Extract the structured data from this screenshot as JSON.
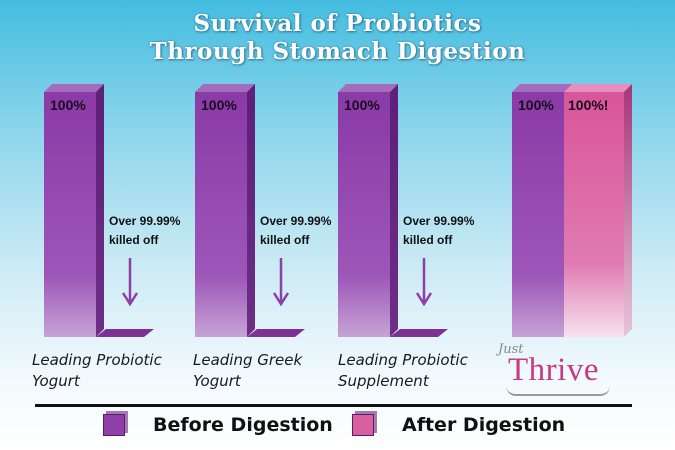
{
  "title_line1": "Survival of Probiotics",
  "title_line2": "Through Stomach Digestion",
  "colors": {
    "before": "#8e3fa8",
    "after": "#d9609f"
  },
  "chart_data": {
    "type": "bar",
    "title": "Survival of Probiotics Through Stomach Digestion",
    "categories": [
      "Leading Probiotic Yogurt",
      "Leading Greek Yogurt",
      "Leading Probiotic Supplement",
      "Just Thrive"
    ],
    "series": [
      {
        "name": "Before Digestion",
        "values": [
          100,
          100,
          100,
          100
        ]
      },
      {
        "name": "After Digestion",
        "values": [
          0.01,
          0.01,
          0.01,
          100
        ]
      }
    ],
    "ylim": [
      0,
      100
    ],
    "data_labels": {
      "before": [
        "100%",
        "100%",
        "100%",
        "100%"
      ],
      "after": [
        "Over 99.99% killed off",
        "Over 99.99% killed off",
        "Over 99.99% killed off",
        "100%!"
      ]
    },
    "legend": "bottom",
    "grid": false
  },
  "labels": {
    "cat1_line1": "Leading Probiotic",
    "cat1_line2": "Yogurt",
    "cat2_line1": "Leading Greek",
    "cat2_line2": "Yogurt",
    "cat3_line1": "Leading Probiotic",
    "cat3_line2": "Supplement",
    "killed_line1": "Over 99.99%",
    "killed_line2": "killed off"
  },
  "legend": {
    "before": "Before Digestion",
    "after": "After Digestion"
  },
  "logo": {
    "small": "Just",
    "big": "Thrive"
  }
}
